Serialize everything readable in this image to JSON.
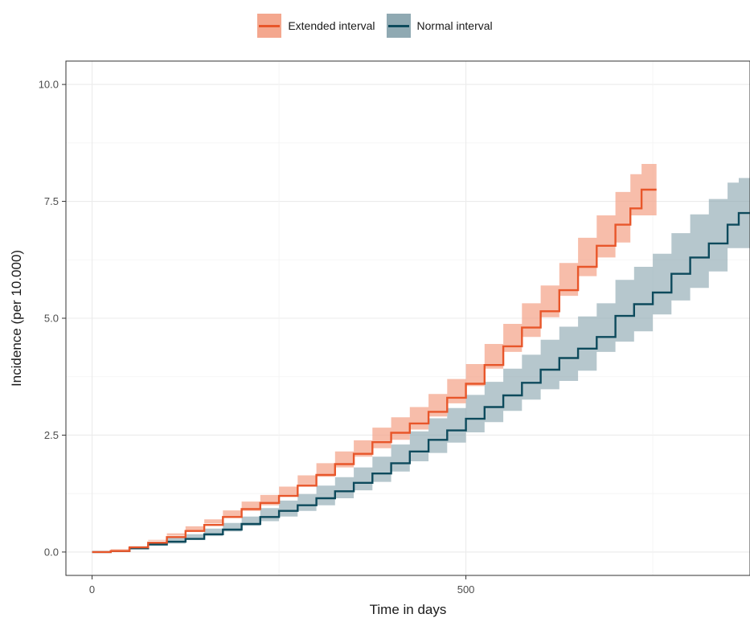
{
  "legend": {
    "items": [
      {
        "label": "Extended interval",
        "line_color": "#e8562a",
        "band_color": "#f4a78e"
      },
      {
        "label": "Normal interval",
        "line_color": "#0d4a5c",
        "band_color": "#8fa9b2"
      }
    ]
  },
  "chart_data": {
    "type": "line",
    "title": "",
    "xlabel": "Time in days",
    "ylabel": "Incidence (per 10.000)",
    "xlim": [
      -35,
      880
    ],
    "ylim": [
      -0.5,
      10.5
    ],
    "x_ticks": [
      0,
      500
    ],
    "x_tick_labels": [
      "0",
      "500"
    ],
    "y_ticks": [
      0,
      2.5,
      5,
      7.5,
      10
    ],
    "y_tick_labels": [
      "0.0",
      "2.5",
      "5.0",
      "7.5",
      "10.0"
    ],
    "grid": true,
    "legend_position": "top",
    "series": [
      {
        "name": "Extended interval",
        "color": "#e8562a",
        "band_color": "#f4a78e",
        "points": [
          [
            0,
            0
          ],
          [
            25,
            0.02
          ],
          [
            50,
            0.1
          ],
          [
            75,
            0.2
          ],
          [
            100,
            0.32
          ],
          [
            125,
            0.45
          ],
          [
            150,
            0.58
          ],
          [
            175,
            0.75
          ],
          [
            200,
            0.92
          ],
          [
            225,
            1.05
          ],
          [
            250,
            1.2
          ],
          [
            275,
            1.42
          ],
          [
            300,
            1.65
          ],
          [
            325,
            1.88
          ],
          [
            350,
            2.1
          ],
          [
            375,
            2.35
          ],
          [
            400,
            2.55
          ],
          [
            425,
            2.75
          ],
          [
            450,
            3.0
          ],
          [
            475,
            3.3
          ],
          [
            500,
            3.6
          ],
          [
            525,
            4.0
          ],
          [
            550,
            4.4
          ],
          [
            575,
            4.8
          ],
          [
            600,
            5.15
          ],
          [
            625,
            5.6
          ],
          [
            650,
            6.1
          ],
          [
            675,
            6.55
          ],
          [
            700,
            7.0
          ],
          [
            720,
            7.35
          ],
          [
            735,
            7.75
          ],
          [
            755,
            7.75
          ]
        ],
        "lower": [
          [
            0,
            0
          ],
          [
            25,
            0.0
          ],
          [
            50,
            0.06
          ],
          [
            75,
            0.14
          ],
          [
            100,
            0.24
          ],
          [
            125,
            0.35
          ],
          [
            150,
            0.46
          ],
          [
            175,
            0.61
          ],
          [
            200,
            0.76
          ],
          [
            225,
            0.88
          ],
          [
            250,
            1.0
          ],
          [
            275,
            1.2
          ],
          [
            300,
            1.4
          ],
          [
            325,
            1.61
          ],
          [
            350,
            1.81
          ],
          [
            375,
            2.04
          ],
          [
            400,
            2.22
          ],
          [
            425,
            2.4
          ],
          [
            450,
            2.62
          ],
          [
            475,
            2.9
          ],
          [
            500,
            3.18
          ],
          [
            525,
            3.55
          ],
          [
            550,
            3.92
          ],
          [
            575,
            4.28
          ],
          [
            600,
            4.6
          ],
          [
            625,
            5.02
          ],
          [
            650,
            5.48
          ],
          [
            675,
            5.9
          ],
          [
            700,
            6.3
          ],
          [
            720,
            6.62
          ],
          [
            735,
            7.2
          ],
          [
            755,
            7.2
          ]
        ],
        "upper": [
          [
            0,
            0
          ],
          [
            25,
            0.04
          ],
          [
            50,
            0.14
          ],
          [
            75,
            0.26
          ],
          [
            100,
            0.4
          ],
          [
            125,
            0.55
          ],
          [
            150,
            0.7
          ],
          [
            175,
            0.89
          ],
          [
            200,
            1.08
          ],
          [
            225,
            1.22
          ],
          [
            250,
            1.4
          ],
          [
            275,
            1.64
          ],
          [
            300,
            1.9
          ],
          [
            325,
            2.15
          ],
          [
            350,
            2.39
          ],
          [
            375,
            2.66
          ],
          [
            400,
            2.88
          ],
          [
            425,
            3.1
          ],
          [
            450,
            3.38
          ],
          [
            475,
            3.7
          ],
          [
            500,
            4.02
          ],
          [
            525,
            4.45
          ],
          [
            550,
            4.88
          ],
          [
            575,
            5.32
          ],
          [
            600,
            5.7
          ],
          [
            625,
            6.18
          ],
          [
            650,
            6.72
          ],
          [
            675,
            7.2
          ],
          [
            700,
            7.7
          ],
          [
            720,
            8.08
          ],
          [
            735,
            8.3
          ],
          [
            755,
            8.3
          ]
        ]
      },
      {
        "name": "Normal interval",
        "color": "#0d4a5c",
        "band_color": "#8fa9b2",
        "points": [
          [
            0,
            0
          ],
          [
            25,
            0.02
          ],
          [
            50,
            0.08
          ],
          [
            75,
            0.16
          ],
          [
            100,
            0.22
          ],
          [
            125,
            0.28
          ],
          [
            150,
            0.38
          ],
          [
            175,
            0.48
          ],
          [
            200,
            0.6
          ],
          [
            225,
            0.75
          ],
          [
            250,
            0.88
          ],
          [
            275,
            1.0
          ],
          [
            300,
            1.15
          ],
          [
            325,
            1.3
          ],
          [
            350,
            1.48
          ],
          [
            375,
            1.68
          ],
          [
            400,
            1.9
          ],
          [
            425,
            2.15
          ],
          [
            450,
            2.4
          ],
          [
            475,
            2.6
          ],
          [
            500,
            2.85
          ],
          [
            525,
            3.1
          ],
          [
            550,
            3.35
          ],
          [
            575,
            3.62
          ],
          [
            600,
            3.9
          ],
          [
            625,
            4.15
          ],
          [
            650,
            4.35
          ],
          [
            675,
            4.6
          ],
          [
            700,
            5.05
          ],
          [
            725,
            5.3
          ],
          [
            750,
            5.55
          ],
          [
            775,
            5.95
          ],
          [
            800,
            6.3
          ],
          [
            825,
            6.6
          ],
          [
            850,
            7.0
          ],
          [
            865,
            7.25
          ],
          [
            880,
            7.25
          ]
        ],
        "lower": [
          [
            0,
            0
          ],
          [
            25,
            0.0
          ],
          [
            50,
            0.04
          ],
          [
            75,
            0.1
          ],
          [
            100,
            0.14
          ],
          [
            125,
            0.18
          ],
          [
            150,
            0.26
          ],
          [
            175,
            0.34
          ],
          [
            200,
            0.44
          ],
          [
            225,
            0.56
          ],
          [
            250,
            0.66
          ],
          [
            275,
            0.76
          ],
          [
            300,
            0.88
          ],
          [
            325,
            1.0
          ],
          [
            350,
            1.15
          ],
          [
            375,
            1.32
          ],
          [
            400,
            1.5
          ],
          [
            425,
            1.72
          ],
          [
            450,
            1.94
          ],
          [
            475,
            2.12
          ],
          [
            500,
            2.34
          ],
          [
            525,
            2.56
          ],
          [
            550,
            2.78
          ],
          [
            575,
            3.02
          ],
          [
            600,
            3.26
          ],
          [
            625,
            3.48
          ],
          [
            650,
            3.66
          ],
          [
            675,
            3.88
          ],
          [
            700,
            4.28
          ],
          [
            725,
            4.5
          ],
          [
            750,
            4.72
          ],
          [
            775,
            5.08
          ],
          [
            800,
            5.38
          ],
          [
            825,
            5.65
          ],
          [
            850,
            6.0
          ],
          [
            865,
            6.5
          ],
          [
            880,
            6.5
          ]
        ],
        "upper": [
          [
            0,
            0
          ],
          [
            25,
            0.04
          ],
          [
            50,
            0.12
          ],
          [
            75,
            0.22
          ],
          [
            100,
            0.3
          ],
          [
            125,
            0.38
          ],
          [
            150,
            0.5
          ],
          [
            175,
            0.62
          ],
          [
            200,
            0.76
          ],
          [
            225,
            0.94
          ],
          [
            250,
            1.1
          ],
          [
            275,
            1.24
          ],
          [
            300,
            1.42
          ],
          [
            325,
            1.6
          ],
          [
            350,
            1.81
          ],
          [
            375,
            2.04
          ],
          [
            400,
            2.3
          ],
          [
            425,
            2.58
          ],
          [
            450,
            2.86
          ],
          [
            475,
            3.08
          ],
          [
            500,
            3.36
          ],
          [
            525,
            3.64
          ],
          [
            550,
            3.92
          ],
          [
            575,
            4.22
          ],
          [
            600,
            4.54
          ],
          [
            625,
            4.82
          ],
          [
            650,
            5.04
          ],
          [
            675,
            5.32
          ],
          [
            700,
            5.82
          ],
          [
            725,
            6.1
          ],
          [
            750,
            6.38
          ],
          [
            775,
            6.82
          ],
          [
            800,
            7.22
          ],
          [
            825,
            7.55
          ],
          [
            850,
            7.9
          ],
          [
            865,
            8.0
          ],
          [
            880,
            8.0
          ]
        ]
      }
    ]
  }
}
